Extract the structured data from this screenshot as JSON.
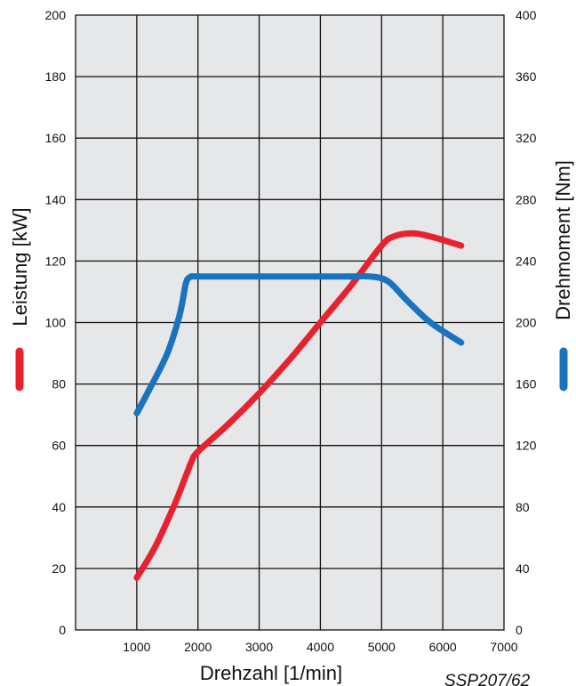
{
  "chart_data": {
    "type": "line",
    "title": "",
    "xlabel": "Drehzahl [1/min]",
    "ylabel_left": "Leistung [kW]",
    "ylabel_right": "Drehmoment [Nm]",
    "source": "SSP207/62",
    "xlim": [
      0,
      7000
    ],
    "ylim_left": [
      0,
      200
    ],
    "ylim_right": [
      0,
      400
    ],
    "grid": true,
    "x_ticks": [
      "1000",
      "2000",
      "3000",
      "4000",
      "5000",
      "6000",
      "7000"
    ],
    "y_ticks_left": [
      "0",
      "20",
      "40",
      "60",
      "80",
      "100",
      "120",
      "140",
      "160",
      "180",
      "200"
    ],
    "y_ticks_right": [
      "0",
      "40",
      "80",
      "120",
      "160",
      "200",
      "240",
      "280",
      "320",
      "360",
      "400"
    ],
    "series": [
      {
        "name": "Leistung [kW]",
        "axis": "left",
        "color": "#e8212f",
        "x": [
          1000,
          1300,
          1600,
          1800,
          1900,
          2000,
          2500,
          3000,
          3500,
          4000,
          4500,
          5000,
          5200,
          5500,
          5800,
          6300
        ],
        "y": [
          17,
          27,
          40,
          50,
          55,
          58,
          67,
          77,
          88,
          100,
          112,
          125,
          128,
          129,
          128,
          125
        ]
      },
      {
        "name": "Drehmoment [Nm]",
        "axis": "right",
        "color": "#1a73bf",
        "x": [
          1000,
          1200,
          1500,
          1700,
          1800,
          1850,
          1900,
          2000,
          3000,
          4000,
          4500,
          4800,
          5100,
          5400,
          5800,
          6300
        ],
        "y": [
          141,
          156,
          180,
          205,
          225,
          229,
          230,
          230,
          230,
          230,
          230,
          230,
          227,
          215,
          200,
          187
        ]
      }
    ]
  }
}
